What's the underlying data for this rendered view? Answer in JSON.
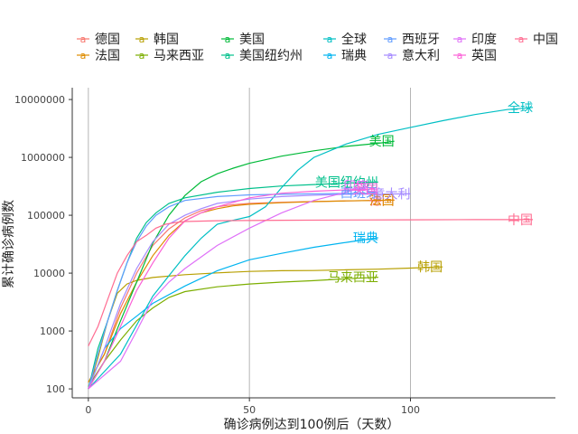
{
  "chart_data": {
    "type": "line",
    "title": "",
    "xlabel": "确诊病例达到100例后（天数）",
    "ylabel": "累计确诊病例数",
    "xlim": [
      -5,
      145
    ],
    "ylim": [
      70,
      16000000
    ],
    "yscale": "log",
    "x_ticks": [
      0,
      50,
      100
    ],
    "x_tick_labels": [
      "0",
      "50",
      "100"
    ],
    "y_ticks": [
      100,
      1000,
      10000,
      100000,
      1000000,
      10000000
    ],
    "y_tick_labels": [
      "100",
      "1000",
      "10000",
      "100000",
      "1000000",
      "10000000"
    ],
    "grid": "vertical major lines only",
    "legend_position": "top",
    "series": [
      {
        "name": "德国",
        "color": "#F8766D",
        "end_label": "德国",
        "points": [
          [
            0,
            130
          ],
          [
            5,
            400
          ],
          [
            10,
            2500
          ],
          [
            15,
            10000
          ],
          [
            20,
            30000
          ],
          [
            25,
            58000
          ],
          [
            30,
            90000
          ],
          [
            35,
            120000
          ],
          [
            40,
            140000
          ],
          [
            45,
            152000
          ],
          [
            50,
            160000
          ],
          [
            60,
            168000
          ],
          [
            70,
            173000
          ],
          [
            80,
            177000
          ],
          [
            90,
            180000
          ],
          [
            95,
            182000
          ]
        ]
      },
      {
        "name": "法国",
        "color": "#DE8C00",
        "end_label": "法国",
        "points": [
          [
            0,
            130
          ],
          [
            5,
            400
          ],
          [
            10,
            2000
          ],
          [
            15,
            7000
          ],
          [
            20,
            20000
          ],
          [
            25,
            45000
          ],
          [
            30,
            80000
          ],
          [
            35,
            110000
          ],
          [
            40,
            130000
          ],
          [
            45,
            145000
          ],
          [
            50,
            155000
          ],
          [
            60,
            165000
          ],
          [
            70,
            172000
          ],
          [
            80,
            177000
          ],
          [
            90,
            181000
          ],
          [
            95,
            183000
          ]
        ]
      },
      {
        "name": "韩国",
        "color": "#B79F00",
        "end_label": "韩国",
        "points": [
          [
            0,
            100
          ],
          [
            3,
            350
          ],
          [
            6,
            1500
          ],
          [
            9,
            4500
          ],
          [
            12,
            6500
          ],
          [
            15,
            7500
          ],
          [
            20,
            8400
          ],
          [
            30,
            9400
          ],
          [
            40,
            10100
          ],
          [
            50,
            10700
          ],
          [
            60,
            11000
          ],
          [
            70,
            11100
          ],
          [
            80,
            11400
          ],
          [
            90,
            11700
          ],
          [
            100,
            12200
          ],
          [
            110,
            12800
          ]
        ]
      },
      {
        "name": "马来西亚",
        "color": "#7CAE00",
        "end_label": "马来西亚",
        "points": [
          [
            0,
            110
          ],
          [
            5,
            300
          ],
          [
            10,
            700
          ],
          [
            15,
            1500
          ],
          [
            20,
            2500
          ],
          [
            25,
            3800
          ],
          [
            30,
            4800
          ],
          [
            40,
            5800
          ],
          [
            50,
            6500
          ],
          [
            60,
            7000
          ],
          [
            70,
            7400
          ],
          [
            80,
            8000
          ],
          [
            90,
            8500
          ]
        ]
      },
      {
        "name": "美国",
        "color": "#00BA38",
        "end_label": "美国",
        "points": [
          [
            0,
            100
          ],
          [
            5,
            300
          ],
          [
            10,
            1500
          ],
          [
            15,
            7000
          ],
          [
            20,
            33000
          ],
          [
            25,
            100000
          ],
          [
            30,
            220000
          ],
          [
            35,
            380000
          ],
          [
            40,
            520000
          ],
          [
            45,
            650000
          ],
          [
            50,
            790000
          ],
          [
            60,
            1050000
          ],
          [
            70,
            1300000
          ],
          [
            80,
            1550000
          ],
          [
            90,
            1750000
          ],
          [
            95,
            1900000
          ]
        ]
      },
      {
        "name": "美国纽约州",
        "color": "#00C08B",
        "end_label": "美国纽约州",
        "points": [
          [
            0,
            100
          ],
          [
            3,
            500
          ],
          [
            6,
            1500
          ],
          [
            9,
            5000
          ],
          [
            12,
            15000
          ],
          [
            15,
            40000
          ],
          [
            18,
            75000
          ],
          [
            21,
            110000
          ],
          [
            25,
            160000
          ],
          [
            30,
            200000
          ],
          [
            40,
            250000
          ],
          [
            50,
            290000
          ],
          [
            60,
            320000
          ],
          [
            70,
            340000
          ],
          [
            80,
            360000
          ],
          [
            90,
            375000
          ]
        ]
      },
      {
        "name": "全球",
        "color": "#00BFC4",
        "end_label": "全球",
        "points": [
          [
            0,
            100
          ],
          [
            10,
            400
          ],
          [
            20,
            4000
          ],
          [
            25,
            9000
          ],
          [
            30,
            20000
          ],
          [
            35,
            40000
          ],
          [
            40,
            70000
          ],
          [
            45,
            82000
          ],
          [
            50,
            95000
          ],
          [
            55,
            140000
          ],
          [
            60,
            300000
          ],
          [
            65,
            600000
          ],
          [
            70,
            1000000
          ],
          [
            80,
            1700000
          ],
          [
            90,
            2500000
          ],
          [
            100,
            3300000
          ],
          [
            110,
            4300000
          ],
          [
            120,
            5500000
          ],
          [
            130,
            6700000
          ],
          [
            138,
            7300000
          ]
        ]
      },
      {
        "name": "瑞典",
        "color": "#00B4F0",
        "end_label": "瑞典",
        "points": [
          [
            0,
            100
          ],
          [
            5,
            500
          ],
          [
            10,
            1100
          ],
          [
            15,
            1800
          ],
          [
            20,
            3000
          ],
          [
            30,
            6000
          ],
          [
            40,
            11000
          ],
          [
            50,
            17000
          ],
          [
            60,
            22000
          ],
          [
            70,
            28000
          ],
          [
            80,
            34000
          ],
          [
            90,
            41000
          ]
        ]
      },
      {
        "name": "西班牙",
        "color": "#619CFF",
        "end_label": "西班牙",
        "points": [
          [
            0,
            100
          ],
          [
            3,
            400
          ],
          [
            6,
            1500
          ],
          [
            9,
            5000
          ],
          [
            12,
            15000
          ],
          [
            15,
            35000
          ],
          [
            18,
            65000
          ],
          [
            21,
            100000
          ],
          [
            25,
            140000
          ],
          [
            30,
            180000
          ],
          [
            40,
            210000
          ],
          [
            50,
            225000
          ],
          [
            60,
            230000
          ],
          [
            70,
            235000
          ],
          [
            80,
            238000
          ],
          [
            90,
            240000
          ]
        ]
      },
      {
        "name": "意大利",
        "color": "#A58AFF",
        "end_label": "意大利",
        "points": [
          [
            0,
            100
          ],
          [
            5,
            500
          ],
          [
            10,
            3000
          ],
          [
            15,
            12000
          ],
          [
            20,
            35000
          ],
          [
            25,
            70000
          ],
          [
            30,
            100000
          ],
          [
            35,
            130000
          ],
          [
            40,
            160000
          ],
          [
            50,
            190000
          ],
          [
            60,
            210000
          ],
          [
            70,
            222000
          ],
          [
            80,
            230000
          ],
          [
            90,
            233000
          ],
          [
            100,
            234000
          ]
        ]
      },
      {
        "name": "印度",
        "color": "#DF70F8",
        "end_label": "印度",
        "points": [
          [
            0,
            100
          ],
          [
            10,
            300
          ],
          [
            15,
            1000
          ],
          [
            20,
            3500
          ],
          [
            25,
            7000
          ],
          [
            30,
            12000
          ],
          [
            40,
            30000
          ],
          [
            50,
            60000
          ],
          [
            60,
            110000
          ],
          [
            70,
            180000
          ],
          [
            80,
            250000
          ],
          [
            87,
            320000
          ]
        ]
      },
      {
        "name": "英国",
        "color": "#FB61D7",
        "end_label": "英国",
        "points": [
          [
            0,
            100
          ],
          [
            5,
            300
          ],
          [
            10,
            1200
          ],
          [
            15,
            5000
          ],
          [
            20,
            15000
          ],
          [
            25,
            40000
          ],
          [
            30,
            80000
          ],
          [
            35,
            110000
          ],
          [
            40,
            140000
          ],
          [
            50,
            200000
          ],
          [
            60,
            240000
          ],
          [
            70,
            260000
          ],
          [
            80,
            275000
          ],
          [
            90,
            285000
          ]
        ]
      },
      {
        "name": "中国",
        "color": "#FF6C91",
        "end_label": "中国",
        "points": [
          [
            0,
            550
          ],
          [
            3,
            1200
          ],
          [
            6,
            3500
          ],
          [
            9,
            10000
          ],
          [
            12,
            20000
          ],
          [
            15,
            35000
          ],
          [
            18,
            45000
          ],
          [
            21,
            60000
          ],
          [
            24,
            70000
          ],
          [
            27,
            75000
          ],
          [
            30,
            78000
          ],
          [
            40,
            80500
          ],
          [
            60,
            82000
          ],
          [
            80,
            83000
          ],
          [
            100,
            83500
          ],
          [
            120,
            84000
          ],
          [
            138,
            84200
          ]
        ]
      }
    ]
  }
}
